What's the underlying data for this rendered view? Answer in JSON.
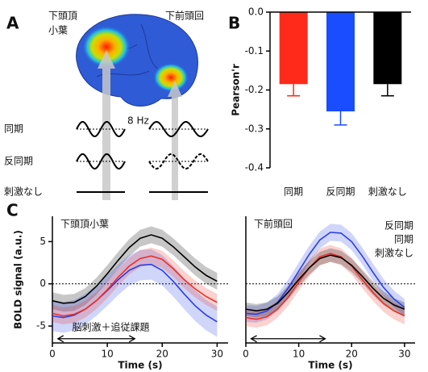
{
  "panel_labels": [
    "A",
    "B",
    "C"
  ],
  "panel_a": {
    "region_1": [
      "下頭頂",
      "小葉"
    ],
    "region_2": "下前頭回",
    "frequency": "8 Hz",
    "conditions": [
      {
        "name": "同期",
        "color": "#e8302a"
      },
      {
        "name": "反同期",
        "color": "#2a3ee8"
      },
      {
        "name": "刺激なし",
        "color": "#222222"
      }
    ]
  },
  "chart_data": [
    {
      "type": "bar",
      "ylabel": "Pearson'r",
      "categories": [
        "同期",
        "反同期",
        "刺激なし"
      ],
      "values": [
        -0.185,
        -0.255,
        -0.185
      ],
      "errors": [
        0.03,
        0.035,
        0.03
      ],
      "colors": [
        "#ff2a1a",
        "#1a4dff",
        "#000000"
      ],
      "label_colors": [
        "#e8302a",
        "#2a3ee8",
        "#222222"
      ],
      "ylim": [
        -0.4,
        0
      ],
      "yticks": [
        {
          "value": 0,
          "label": "0.0"
        },
        -0.1,
        -0.2,
        -0.3,
        -0.4
      ]
    },
    {
      "type": "line",
      "title": "下頭頂小葉",
      "xlabel": "Time (s)",
      "ylabel": "BOLD signal (a.u.)",
      "x": [
        0,
        2,
        4,
        6,
        8,
        10,
        12,
        14,
        16,
        18,
        20,
        22,
        24,
        26,
        28,
        30
      ],
      "series": [
        {
          "name": "刺激なし",
          "color": "#000000",
          "error": 1.0,
          "values": [
            -2.0,
            -2.3,
            -2.2,
            -1.5,
            -0.3,
            1.2,
            2.8,
            4.3,
            5.4,
            5.8,
            5.4,
            4.4,
            3.2,
            2.0,
            1.0,
            0.3
          ]
        },
        {
          "name": "反同期",
          "color": "#2a3ee8",
          "error": 1.8,
          "values": [
            -3.8,
            -4.0,
            -3.7,
            -3.0,
            -2.0,
            -0.8,
            0.5,
            1.6,
            2.2,
            2.3,
            1.6,
            0.3,
            -1.2,
            -2.6,
            -3.7,
            -4.5
          ]
        },
        {
          "name": "同期",
          "color": "#e8302a",
          "error": 1.0,
          "values": [
            -3.5,
            -3.8,
            -3.6,
            -3.0,
            -2.0,
            -0.7,
            0.8,
            2.1,
            3.0,
            3.3,
            2.9,
            1.8,
            0.5,
            -0.6,
            -1.5,
            -2.2
          ]
        }
      ],
      "annotation": {
        "text": "脳刺激＋追従課題",
        "x": [
          1,
          15
        ],
        "y": -6.5
      },
      "xlim": [
        0,
        32
      ],
      "xticks": [
        0,
        10,
        20,
        30
      ],
      "ylim": [
        -7,
        8
      ],
      "yticks": [
        -5,
        0,
        5
      ],
      "zero_line": true,
      "legend": false
    },
    {
      "type": "line",
      "title": "下前頭回",
      "xlabel": "Time (s)",
      "x": [
        0,
        2,
        4,
        6,
        8,
        10,
        12,
        14,
        16,
        18,
        20,
        22,
        24,
        26,
        28,
        30
      ],
      "series": [
        {
          "name": "反同期",
          "color": "#2a3ee8",
          "error": 1.0,
          "values": [
            -3.5,
            -3.6,
            -3.2,
            -2.2,
            -0.5,
            1.5,
            3.5,
            5.2,
            6.1,
            6.0,
            5.0,
            3.3,
            1.4,
            -0.4,
            -1.8,
            -2.8
          ]
        },
        {
          "name": "同期",
          "color": "#e8302a",
          "error": 1.0,
          "values": [
            -4.0,
            -4.2,
            -3.9,
            -3.0,
            -1.6,
            0.2,
            1.9,
            3.2,
            3.6,
            3.2,
            2.1,
            0.5,
            -1.0,
            -2.3,
            -3.2,
            -3.8
          ]
        },
        {
          "name": "刺激なし",
          "color": "#000000",
          "error": 0.8,
          "values": [
            -3.0,
            -3.2,
            -3.0,
            -2.3,
            -1.0,
            0.5,
            1.9,
            3.0,
            3.4,
            3.1,
            2.2,
            0.9,
            -0.5,
            -1.7,
            -2.5,
            -3.0
          ]
        }
      ],
      "annotation": {
        "x": [
          1,
          15
        ],
        "y": -6.5
      },
      "xlim": [
        0,
        32
      ],
      "xticks": [
        0,
        10,
        20,
        30
      ],
      "ylim": [
        -7,
        8
      ],
      "zero_line": true,
      "legend": true
    }
  ]
}
